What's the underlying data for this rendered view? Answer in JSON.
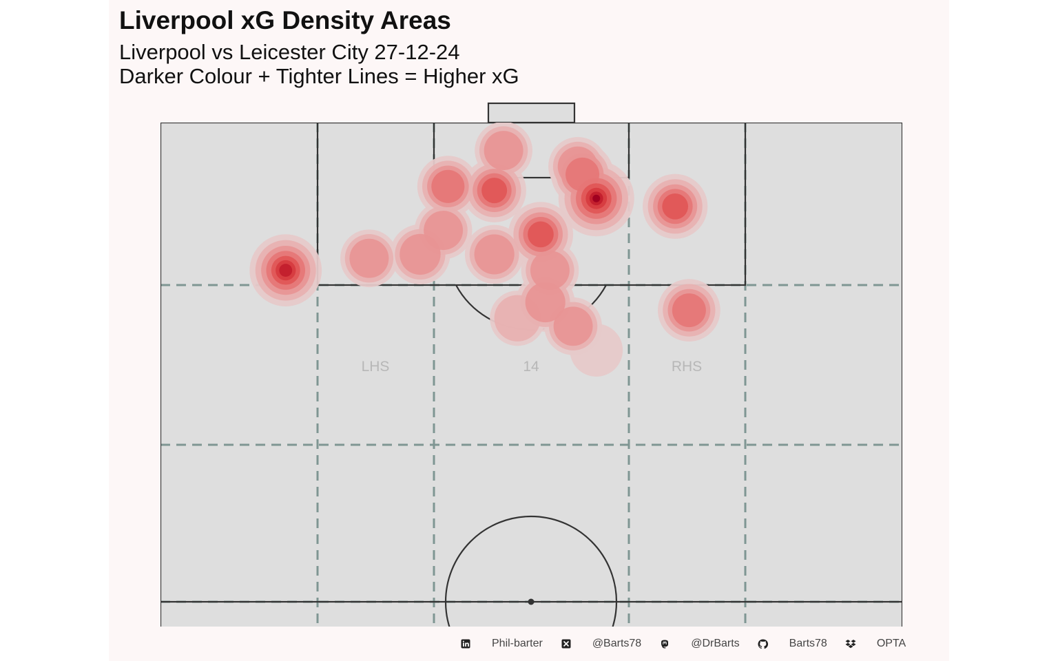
{
  "title": "Liverpool xG Density Areas",
  "subtitle_lines": [
    "Liverpool vs Leicester City 27-12-24",
    "Darker Colour + Tighter Lines = Higher xG"
  ],
  "colors": {
    "background": "#fdf7f7",
    "pitch_fill": "#dedede",
    "pitch_lines": "#333333",
    "zone_lines": "#7f9693",
    "density_low": "#e8c4c4",
    "density_high": "#9e0020",
    "zone_label": "#b0b0b0"
  },
  "chart_data": {
    "type": "heatmap",
    "description_kind": "2D kernel density of shot locations (xG weighted) on a half pitch",
    "pitch": {
      "length_units": "statsbomb-style 120 x 80 half-pitch view (attacking end at top)",
      "x_range": [
        0,
        80
      ],
      "y_range": [
        60,
        120
      ]
    },
    "zone_labels": [
      "LHS",
      "14",
      "RHS"
    ],
    "density_hotspots": [
      {
        "x": 47.0,
        "y": 110.5,
        "weight": 1.0
      },
      {
        "x": 41.0,
        "y": 106.0,
        "weight": 0.55
      },
      {
        "x": 36.0,
        "y": 111.5,
        "weight": 0.5
      },
      {
        "x": 45.5,
        "y": 113.5,
        "weight": 0.45
      },
      {
        "x": 31.0,
        "y": 112.0,
        "weight": 0.4
      },
      {
        "x": 55.5,
        "y": 109.5,
        "weight": 0.55
      },
      {
        "x": 45.0,
        "y": 114.5,
        "weight": 0.3
      },
      {
        "x": 37.0,
        "y": 116.5,
        "weight": 0.25
      },
      {
        "x": 36.0,
        "y": 103.5,
        "weight": 0.3
      },
      {
        "x": 42.0,
        "y": 101.5,
        "weight": 0.25
      },
      {
        "x": 41.5,
        "y": 97.5,
        "weight": 0.3
      },
      {
        "x": 38.5,
        "y": 95.5,
        "weight": 0.15
      },
      {
        "x": 28.0,
        "y": 103.5,
        "weight": 0.35
      },
      {
        "x": 22.5,
        "y": 103.0,
        "weight": 0.25
      },
      {
        "x": 44.5,
        "y": 94.5,
        "weight": 0.25
      },
      {
        "x": 47.0,
        "y": 91.5,
        "weight": 0.05
      },
      {
        "x": 13.5,
        "y": 101.5,
        "weight": 0.85
      },
      {
        "x": 57.0,
        "y": 96.5,
        "weight": 0.45
      },
      {
        "x": 30.5,
        "y": 106.5,
        "weight": 0.25
      }
    ],
    "grid": true,
    "legend": "none"
  },
  "caption": {
    "items": [
      {
        "icon": "linkedin-icon",
        "text": "Phil-barter"
      },
      {
        "icon": "x-twitter-icon",
        "text": "@Barts78"
      },
      {
        "icon": "mastodon-icon",
        "text": "@DrBarts"
      },
      {
        "icon": "github-icon",
        "text": "Barts78"
      },
      {
        "icon": "dropbox-icon",
        "text": "OPTA"
      }
    ]
  }
}
